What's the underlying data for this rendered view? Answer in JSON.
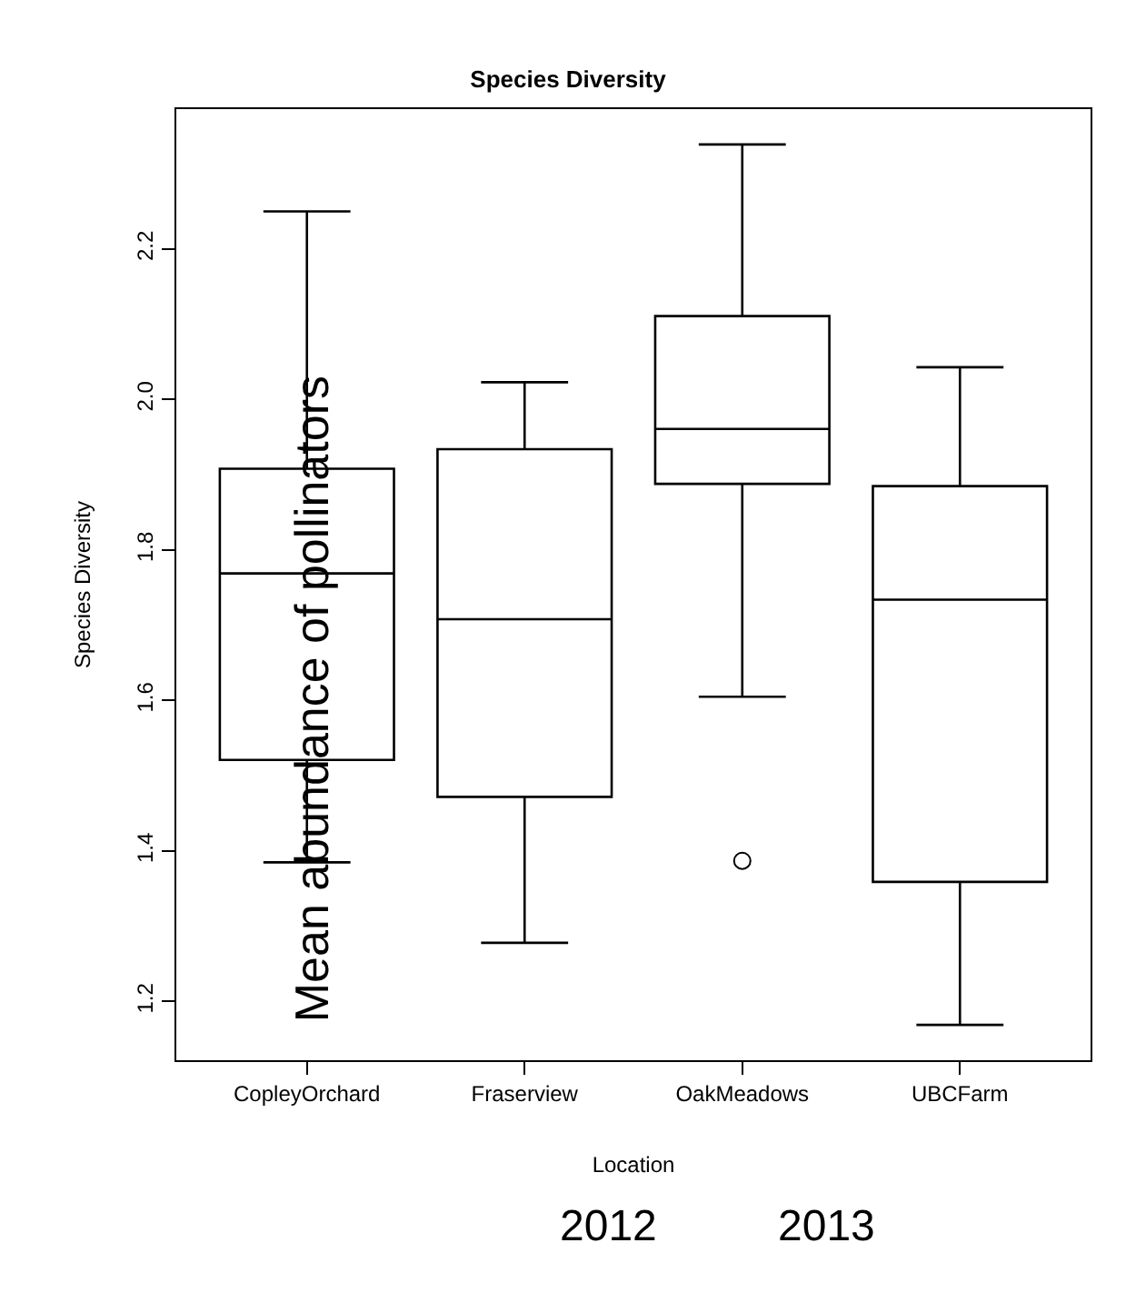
{
  "chart_data": {
    "type": "box",
    "title": "Species Diversity",
    "xlabel": "Location",
    "ylabel": "Species Diversity",
    "categories": [
      "CopleyOrchard",
      "Fraserview",
      "OakMeadows",
      "UBCFarm"
    ],
    "boxes": [
      {
        "low": 1.385,
        "q1": 1.521,
        "median": 1.769,
        "q3": 1.908,
        "high": 2.25
      },
      {
        "low": 1.278,
        "q1": 1.472,
        "median": 1.708,
        "q3": 1.934,
        "high": 2.023
      },
      {
        "low": 1.605,
        "q1": 1.888,
        "median": 1.961,
        "q3": 2.111,
        "high": 2.339,
        "outliers": [
          1.387
        ]
      },
      {
        "low": 1.169,
        "q1": 1.359,
        "median": 1.734,
        "q3": 1.885,
        "high": 2.043
      }
    ],
    "ylim": [
      1.122,
      2.386
    ],
    "yticks": [
      1.2,
      1.4,
      1.6,
      1.8,
      {
        "value": 2,
        "label": "2.0"
      },
      2.2
    ],
    "annotations": [
      "Mean abundance of pollinators",
      "2012",
      "2013"
    ]
  }
}
